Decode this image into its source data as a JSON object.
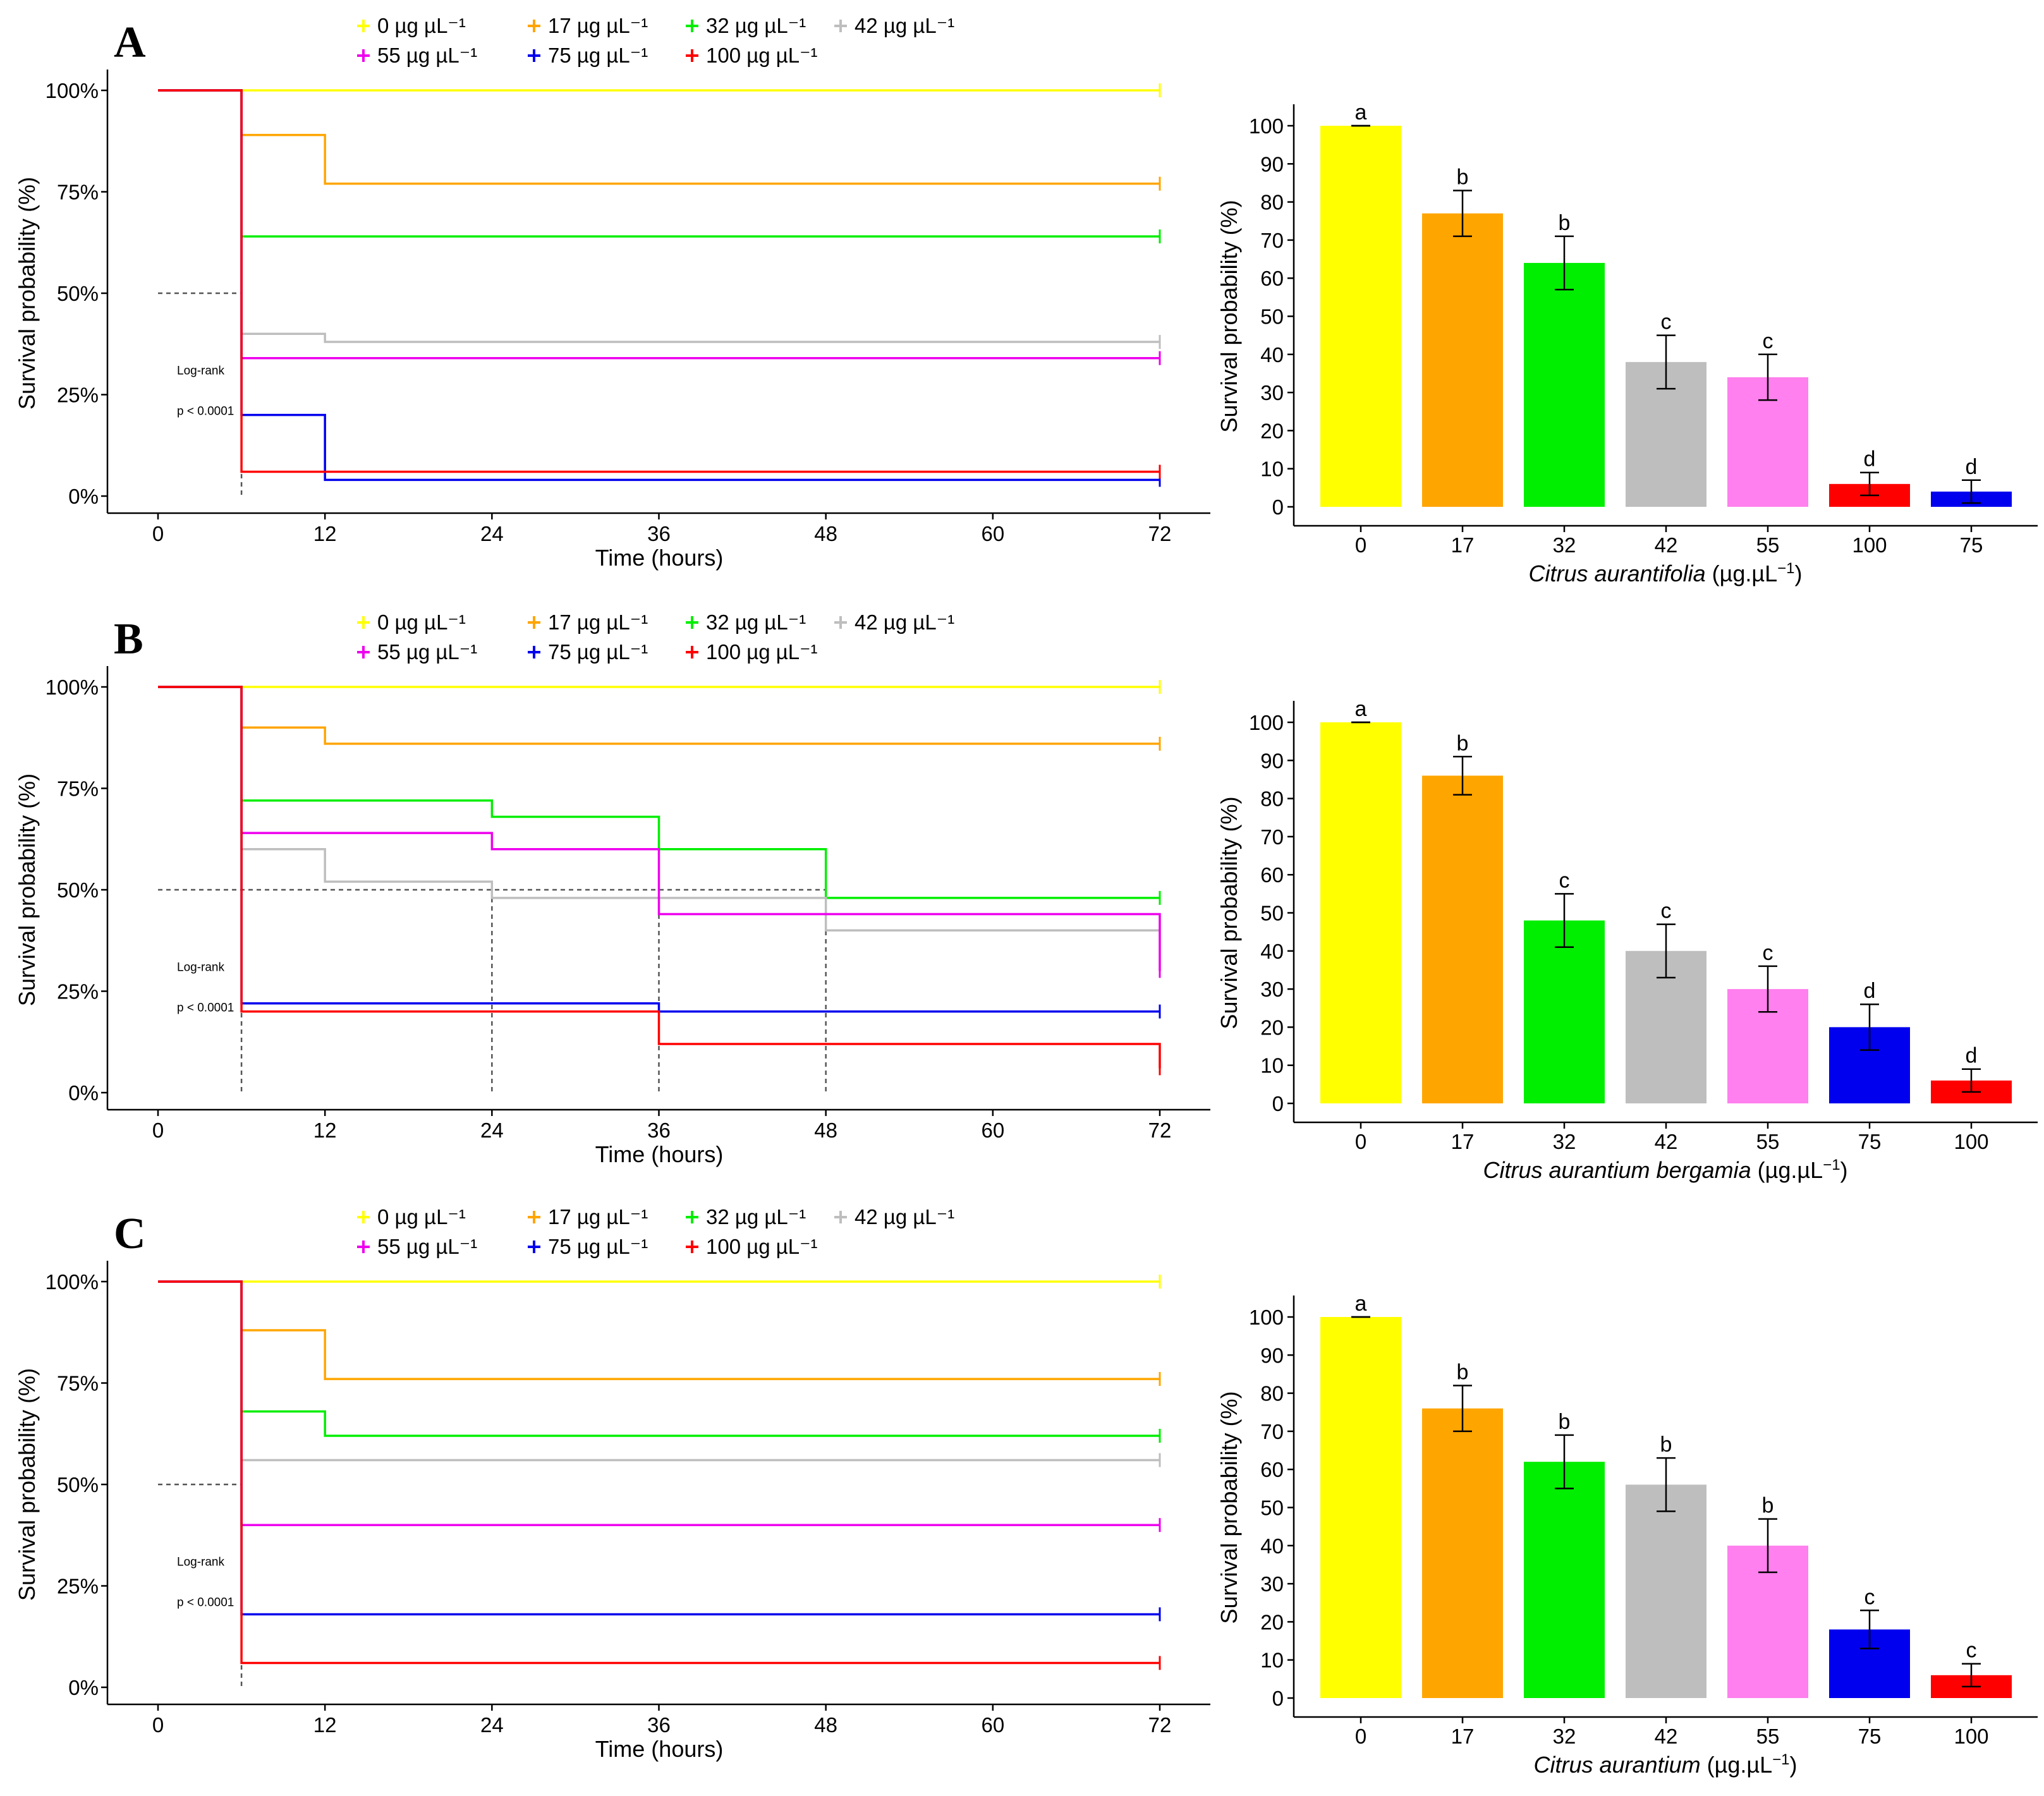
{
  "legend": {
    "entries": [
      {
        "label": "0 µg µL⁻¹",
        "color": "#ffff00"
      },
      {
        "label": "17 µg µL⁻¹",
        "color": "#ffa500"
      },
      {
        "label": "32 µg µL⁻¹",
        "color": "#00ee00"
      },
      {
        "label": "42 µg µL⁻¹",
        "color": "#bebebe"
      },
      {
        "label": "55 µg µL⁻¹",
        "color": "#ee00ee"
      },
      {
        "label": "75 µg µL⁻¹",
        "color": "#0000ee"
      },
      {
        "label": "100 µg µL⁻¹",
        "color": "#ff0000"
      }
    ]
  },
  "chart_data": [
    {
      "panel": "A",
      "type": "line",
      "subtype": "kaplan-meier",
      "xlabel": "Time (hours)",
      "ylabel": "Survival probability (%)",
      "xticks": [
        "0",
        "12",
        "24",
        "36",
        "48",
        "60",
        "72"
      ],
      "yticks": [
        "0%",
        "25%",
        "50%",
        "75%",
        "100%"
      ],
      "xlim": [
        0,
        72
      ],
      "ylim": [
        0,
        100
      ],
      "annotation": {
        "line1": "Log-rank",
        "line2": "p < 0.0001"
      },
      "median_lines": [
        6
      ],
      "series": [
        {
          "name": "0 µg µL⁻¹",
          "color": "#ffff00",
          "steps": [
            [
              0,
              100
            ],
            [
              72,
              100
            ]
          ]
        },
        {
          "name": "17 µg µL⁻¹",
          "color": "#ffa500",
          "steps": [
            [
              0,
              100
            ],
            [
              6,
              89
            ],
            [
              12,
              77
            ],
            [
              72,
              77
            ]
          ]
        },
        {
          "name": "32 µg µL⁻¹",
          "color": "#00ee00",
          "steps": [
            [
              0,
              100
            ],
            [
              6,
              64
            ],
            [
              72,
              64
            ]
          ]
        },
        {
          "name": "42 µg µL⁻¹",
          "color": "#bebebe",
          "steps": [
            [
              0,
              100
            ],
            [
              6,
              40
            ],
            [
              12,
              38
            ],
            [
              72,
              38
            ]
          ]
        },
        {
          "name": "55 µg µL⁻¹",
          "color": "#ee00ee",
          "steps": [
            [
              0,
              100
            ],
            [
              6,
              34
            ],
            [
              72,
              34
            ]
          ]
        },
        {
          "name": "75 µg µL⁻¹",
          "color": "#0000ee",
          "steps": [
            [
              0,
              100
            ],
            [
              6,
              20
            ],
            [
              12,
              4
            ],
            [
              72,
              4
            ]
          ]
        },
        {
          "name": "100 µg µL⁻¹",
          "color": "#ff0000",
          "steps": [
            [
              0,
              100
            ],
            [
              6,
              6
            ],
            [
              72,
              6
            ]
          ]
        }
      ]
    },
    {
      "panel": "A",
      "type": "bar",
      "xlabel_italic": "Citrus aurantifolia",
      "xlabel_unit": "(µg.µL",
      "xlabel_exp": "−1",
      "xlabel_close": ")",
      "ylabel": "Survival probability (%)",
      "ylim": [
        0,
        105
      ],
      "yticks": [
        "0",
        "10",
        "20",
        "30",
        "40",
        "50",
        "60",
        "70",
        "80",
        "90",
        "100"
      ],
      "categories": [
        "0",
        "17",
        "32",
        "42",
        "55",
        "100",
        "75"
      ],
      "values": [
        100,
        77,
        64,
        38,
        34,
        6,
        4
      ],
      "errors": [
        0,
        6,
        7,
        7,
        6,
        3,
        3
      ],
      "letters": [
        "a",
        "b",
        "b",
        "c",
        "c",
        "d",
        "d"
      ],
      "colors": [
        "#ffff00",
        "#ffa500",
        "#00ee00",
        "#bebebe",
        "#ff80ee",
        "#ff0000",
        "#0000ee"
      ]
    },
    {
      "panel": "B",
      "type": "line",
      "subtype": "kaplan-meier",
      "xlabel": "Time (hours)",
      "ylabel": "Survival probability (%)",
      "xticks": [
        "0",
        "12",
        "24",
        "36",
        "48",
        "60",
        "72"
      ],
      "yticks": [
        "0%",
        "25%",
        "50%",
        "75%",
        "100%"
      ],
      "xlim": [
        0,
        72
      ],
      "ylim": [
        0,
        100
      ],
      "annotation": {
        "line1": "Log-rank",
        "line2": "p < 0.0001"
      },
      "median_lines": [
        6,
        24,
        36,
        48
      ],
      "series": [
        {
          "name": "0 µg µL⁻¹",
          "color": "#ffff00",
          "steps": [
            [
              0,
              100
            ],
            [
              72,
              100
            ]
          ]
        },
        {
          "name": "17 µg µL⁻¹",
          "color": "#ffa500",
          "steps": [
            [
              0,
              100
            ],
            [
              6,
              90
            ],
            [
              12,
              86
            ],
            [
              72,
              86
            ]
          ]
        },
        {
          "name": "32 µg µL⁻¹",
          "color": "#00ee00",
          "steps": [
            [
              0,
              100
            ],
            [
              6,
              72
            ],
            [
              24,
              68
            ],
            [
              36,
              60
            ],
            [
              48,
              48
            ],
            [
              72,
              48
            ]
          ]
        },
        {
          "name": "42 µg µL⁻¹",
          "color": "#bebebe",
          "steps": [
            [
              0,
              100
            ],
            [
              6,
              60
            ],
            [
              12,
              52
            ],
            [
              24,
              48
            ],
            [
              48,
              40
            ],
            [
              72,
              40
            ]
          ]
        },
        {
          "name": "55 µg µL⁻¹",
          "color": "#ee00ee",
          "steps": [
            [
              0,
              100
            ],
            [
              6,
              64
            ],
            [
              24,
              60
            ],
            [
              36,
              44
            ],
            [
              72,
              44
            ],
            [
              72,
              30
            ]
          ]
        },
        {
          "name": "75 µg µL⁻¹",
          "color": "#0000ee",
          "steps": [
            [
              0,
              100
            ],
            [
              6,
              22
            ],
            [
              36,
              20
            ],
            [
              72,
              20
            ]
          ]
        },
        {
          "name": "100 µg µL⁻¹",
          "color": "#ff0000",
          "steps": [
            [
              0,
              100
            ],
            [
              6,
              20
            ],
            [
              36,
              12
            ],
            [
              72,
              12
            ],
            [
              72,
              6
            ]
          ]
        }
      ]
    },
    {
      "panel": "B",
      "type": "bar",
      "xlabel_italic": "Citrus aurantium bergamia",
      "xlabel_unit": "(µg.µL",
      "xlabel_exp": "−1",
      "xlabel_close": ")",
      "ylabel": "Survival probability (%)",
      "ylim": [
        0,
        105
      ],
      "yticks": [
        "0",
        "10",
        "20",
        "30",
        "40",
        "50",
        "60",
        "70",
        "80",
        "90",
        "100"
      ],
      "categories": [
        "0",
        "17",
        "32",
        "42",
        "55",
        "75",
        "100"
      ],
      "values": [
        100,
        86,
        48,
        40,
        30,
        20,
        6
      ],
      "errors": [
        0,
        5,
        7,
        7,
        6,
        6,
        3
      ],
      "letters": [
        "a",
        "b",
        "c",
        "c",
        "c",
        "d",
        "d"
      ],
      "colors": [
        "#ffff00",
        "#ffa500",
        "#00ee00",
        "#bebebe",
        "#ff80ee",
        "#0000ee",
        "#ff0000"
      ]
    },
    {
      "panel": "C",
      "type": "line",
      "subtype": "kaplan-meier",
      "xlabel": "Time (hours)",
      "ylabel": "Survival probability (%)",
      "xticks": [
        "0",
        "12",
        "24",
        "36",
        "48",
        "60",
        "72"
      ],
      "yticks": [
        "0%",
        "25%",
        "50%",
        "75%",
        "100%"
      ],
      "xlim": [
        0,
        72
      ],
      "ylim": [
        0,
        100
      ],
      "annotation": {
        "line1": "Log-rank",
        "line2": "p < 0.0001"
      },
      "median_lines": [
        6
      ],
      "series": [
        {
          "name": "0 µg µL⁻¹",
          "color": "#ffff00",
          "steps": [
            [
              0,
              100
            ],
            [
              72,
              100
            ]
          ]
        },
        {
          "name": "17 µg µL⁻¹",
          "color": "#ffa500",
          "steps": [
            [
              0,
              100
            ],
            [
              6,
              88
            ],
            [
              12,
              76
            ],
            [
              72,
              76
            ]
          ]
        },
        {
          "name": "32 µg µL⁻¹",
          "color": "#00ee00",
          "steps": [
            [
              0,
              100
            ],
            [
              6,
              68
            ],
            [
              12,
              62
            ],
            [
              72,
              62
            ]
          ]
        },
        {
          "name": "42 µg µL⁻¹",
          "color": "#bebebe",
          "steps": [
            [
              0,
              100
            ],
            [
              6,
              56
            ],
            [
              72,
              56
            ]
          ]
        },
        {
          "name": "55 µg µL⁻¹",
          "color": "#ee00ee",
          "steps": [
            [
              0,
              100
            ],
            [
              6,
              40
            ],
            [
              72,
              40
            ]
          ]
        },
        {
          "name": "75 µg µL⁻¹",
          "color": "#0000ee",
          "steps": [
            [
              0,
              100
            ],
            [
              6,
              18
            ],
            [
              72,
              18
            ]
          ]
        },
        {
          "name": "100 µg µL⁻¹",
          "color": "#ff0000",
          "steps": [
            [
              0,
              100
            ],
            [
              6,
              6
            ],
            [
              72,
              6
            ]
          ]
        }
      ]
    },
    {
      "panel": "C",
      "type": "bar",
      "xlabel_italic": "Citrus aurantium",
      "xlabel_unit": "(µg.µL",
      "xlabel_exp": "−1",
      "xlabel_close": ")",
      "ylabel": "Survival probability (%)",
      "ylim": [
        0,
        105
      ],
      "yticks": [
        "0",
        "10",
        "20",
        "30",
        "40",
        "50",
        "60",
        "70",
        "80",
        "90",
        "100"
      ],
      "categories": [
        "0",
        "17",
        "32",
        "42",
        "55",
        "75",
        "100"
      ],
      "values": [
        100,
        76,
        62,
        56,
        40,
        18,
        6
      ],
      "errors": [
        0,
        6,
        7,
        7,
        7,
        5,
        3
      ],
      "letters": [
        "a",
        "b",
        "b",
        "b",
        "b",
        "c",
        "c"
      ],
      "colors": [
        "#ffff00",
        "#ffa500",
        "#00ee00",
        "#bebebe",
        "#ff80ee",
        "#0000ee",
        "#ff0000"
      ]
    }
  ]
}
